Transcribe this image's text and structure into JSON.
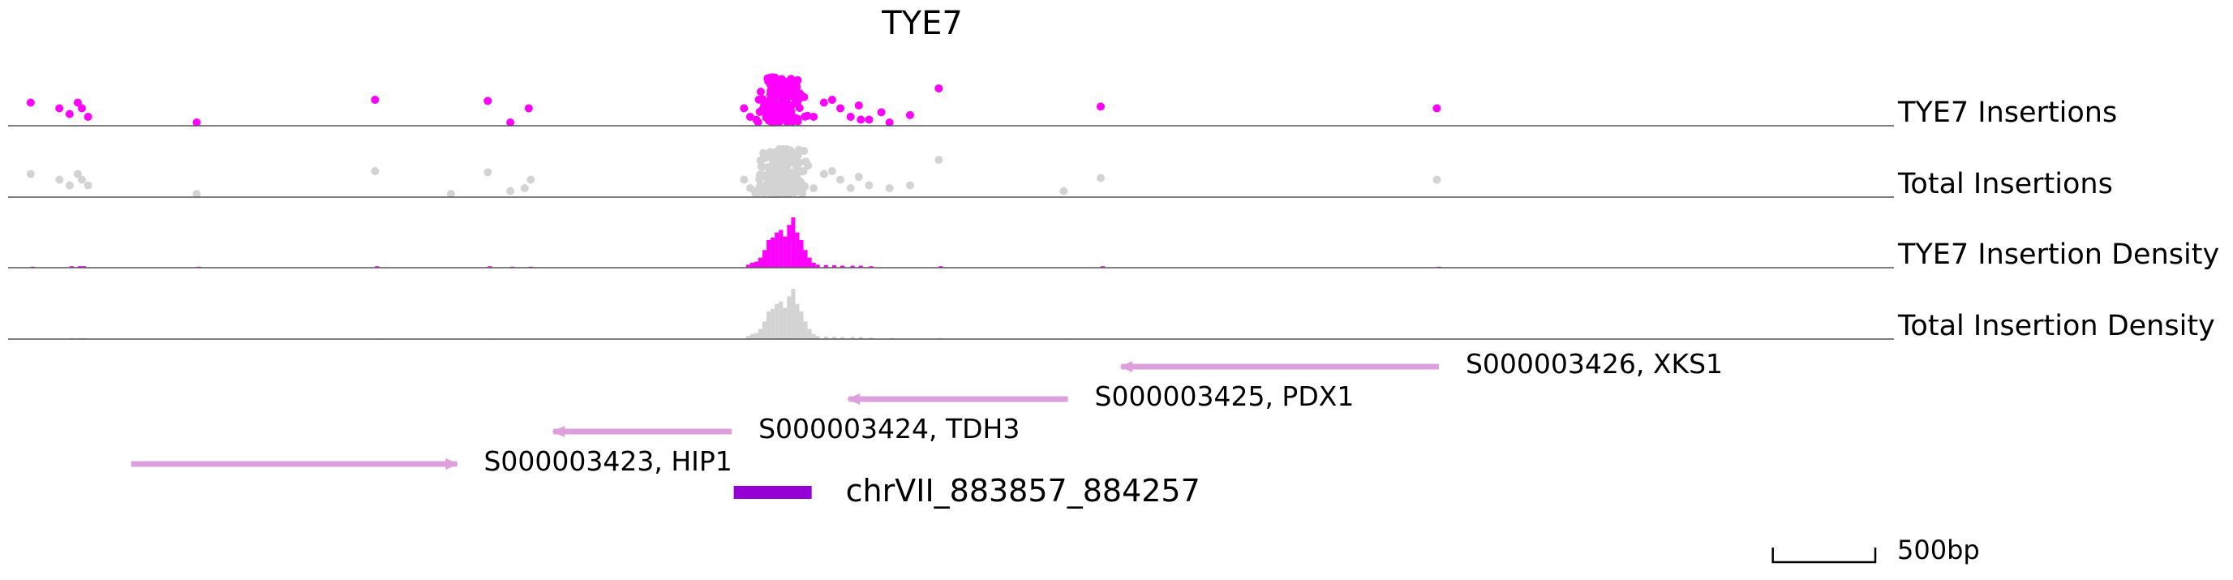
{
  "title": "TYE7",
  "colors": {
    "factor": "#ff00ff",
    "total": "#d3d3d3",
    "gene": "#dda0dd",
    "region": "#9400d3",
    "axis": "#555555",
    "text": "#000000"
  },
  "chart_data": {
    "type": "scatter",
    "unit": "bp",
    "x_range": [
      0,
      9200
    ],
    "tracks": [
      {
        "name": "TYE7 Insertions",
        "kind": "points",
        "color_key": "factor",
        "clusters": [
          {
            "x": 3780,
            "n": 150,
            "spread": 150,
            "max": 0.8
          }
        ],
        "points": [
          [
            110,
            0.35
          ],
          [
            250,
            0.25
          ],
          [
            300,
            0.15
          ],
          [
            340,
            0.35
          ],
          [
            360,
            0.25
          ],
          [
            390,
            0.1
          ],
          [
            920,
            0.0
          ],
          [
            1790,
            0.4
          ],
          [
            2340,
            0.38
          ],
          [
            2450,
            0.0
          ],
          [
            2540,
            0.25
          ],
          [
            3590,
            0.25
          ],
          [
            3620,
            0.1
          ],
          [
            3650,
            0.05
          ],
          [
            3930,
            0.1
          ],
          [
            3980,
            0.35
          ],
          [
            4020,
            0.4
          ],
          [
            4060,
            0.25
          ],
          [
            4110,
            0.1
          ],
          [
            4150,
            0.3
          ],
          [
            4160,
            0.05
          ],
          [
            4200,
            0.05
          ],
          [
            4260,
            0.18
          ],
          [
            4300,
            0.0
          ],
          [
            4400,
            0.13
          ],
          [
            4540,
            0.6
          ],
          [
            5330,
            0.28
          ],
          [
            6970,
            0.25
          ]
        ]
      },
      {
        "name": "Total Insertions",
        "kind": "points",
        "color_key": "total",
        "clusters": [
          {
            "x": 3780,
            "n": 180,
            "spread": 160,
            "max": 0.8
          }
        ],
        "points": [
          [
            110,
            0.35
          ],
          [
            250,
            0.25
          ],
          [
            300,
            0.15
          ],
          [
            340,
            0.35
          ],
          [
            360,
            0.25
          ],
          [
            390,
            0.15
          ],
          [
            920,
            0.0
          ],
          [
            1790,
            0.4
          ],
          [
            2160,
            0.0
          ],
          [
            2340,
            0.38
          ],
          [
            2450,
            0.05
          ],
          [
            2520,
            0.1
          ],
          [
            2550,
            0.25
          ],
          [
            3590,
            0.25
          ],
          [
            3620,
            0.1
          ],
          [
            3650,
            0.05
          ],
          [
            3930,
            0.1
          ],
          [
            3980,
            0.35
          ],
          [
            4020,
            0.4
          ],
          [
            4060,
            0.25
          ],
          [
            4110,
            0.1
          ],
          [
            4150,
            0.3
          ],
          [
            4200,
            0.15
          ],
          [
            4300,
            0.1
          ],
          [
            4400,
            0.15
          ],
          [
            4540,
            0.6
          ],
          [
            5150,
            0.05
          ],
          [
            5330,
            0.28
          ],
          [
            6970,
            0.25
          ]
        ]
      },
      {
        "name": "TYE7 Insertion Density",
        "kind": "density",
        "color_key": "factor",
        "bin": 20,
        "bars": [
          [
            3600,
            0.06
          ],
          [
            3620,
            0.1
          ],
          [
            3640,
            0.12
          ],
          [
            3660,
            0.2
          ],
          [
            3680,
            0.35
          ],
          [
            3700,
            0.55
          ],
          [
            3720,
            0.6
          ],
          [
            3740,
            0.7
          ],
          [
            3760,
            0.75
          ],
          [
            3780,
            0.62
          ],
          [
            3800,
            0.85
          ],
          [
            3820,
            1.0
          ],
          [
            3840,
            0.7
          ],
          [
            3860,
            0.55
          ],
          [
            3880,
            0.35
          ],
          [
            3900,
            0.2
          ],
          [
            3920,
            0.1
          ],
          [
            3940,
            0.06
          ],
          [
            3980,
            0.05
          ],
          [
            4020,
            0.05
          ],
          [
            4060,
            0.04
          ],
          [
            4110,
            0.04
          ],
          [
            4150,
            0.04
          ],
          [
            4200,
            0.03
          ],
          [
            4540,
            0.03
          ],
          [
            5330,
            0.03
          ],
          [
            6970,
            0.02
          ],
          [
            920,
            0.02
          ],
          [
            1790,
            0.03
          ],
          [
            2340,
            0.03
          ],
          [
            110,
            0.02
          ],
          [
            300,
            0.03
          ],
          [
            340,
            0.03
          ],
          [
            360,
            0.03
          ],
          [
            2450,
            0.02
          ],
          [
            2540,
            0.02
          ]
        ]
      },
      {
        "name": "Total Insertion Density",
        "kind": "density",
        "color_key": "total",
        "bin": 20,
        "bars": [
          [
            3600,
            0.06
          ],
          [
            3620,
            0.1
          ],
          [
            3640,
            0.12
          ],
          [
            3660,
            0.2
          ],
          [
            3680,
            0.35
          ],
          [
            3700,
            0.55
          ],
          [
            3720,
            0.6
          ],
          [
            3740,
            0.7
          ],
          [
            3760,
            0.75
          ],
          [
            3780,
            0.62
          ],
          [
            3800,
            0.85
          ],
          [
            3820,
            1.0
          ],
          [
            3840,
            0.7
          ],
          [
            3860,
            0.55
          ],
          [
            3880,
            0.35
          ],
          [
            3900,
            0.2
          ],
          [
            3920,
            0.1
          ],
          [
            3940,
            0.06
          ],
          [
            3980,
            0.05
          ],
          [
            4020,
            0.05
          ],
          [
            4060,
            0.04
          ],
          [
            4110,
            0.04
          ],
          [
            4150,
            0.04
          ],
          [
            4200,
            0.03
          ],
          [
            4300,
            0.02
          ],
          [
            4540,
            0.02
          ],
          [
            5150,
            0.01
          ],
          [
            5330,
            0.01
          ],
          [
            6970,
            0.01
          ],
          [
            920,
            0.01
          ],
          [
            1790,
            0.01
          ],
          [
            2340,
            0.01
          ],
          [
            110,
            0.01
          ],
          [
            300,
            0.02
          ],
          [
            340,
            0.02
          ],
          [
            360,
            0.02
          ]
        ]
      }
    ],
    "genes": [
      {
        "id": "S000003426",
        "name": "XKS1",
        "label": "S000003426, XKS1",
        "start": 5430,
        "end": 6980,
        "strand": "-",
        "row": 0
      },
      {
        "id": "S000003425",
        "name": "PDX1",
        "label": "S000003425, PDX1",
        "start": 4100,
        "end": 5170,
        "strand": "-",
        "row": 1
      },
      {
        "id": "S000003424",
        "name": "TDH3",
        "label": "S000003424, TDH3",
        "start": 2660,
        "end": 3530,
        "strand": "-",
        "row": 2
      },
      {
        "id": "S000003423",
        "name": "HIP1",
        "label": "S000003423, HIP1",
        "start": 600,
        "end": 2190,
        "strand": "+",
        "row": 3
      }
    ],
    "region": {
      "label": "chrVII_883857_884257",
      "start": 3540,
      "end": 3920
    },
    "scale_bar": {
      "label": "500bp",
      "length": 500
    }
  }
}
